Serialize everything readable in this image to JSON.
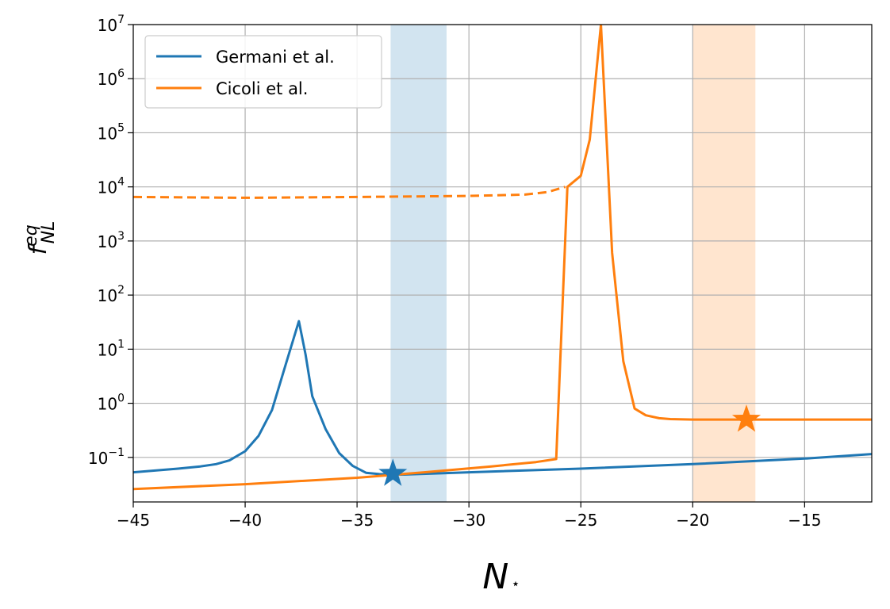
{
  "chart_data": {
    "type": "line",
    "xlabel": "N",
    "xlabel_sub": "⋆",
    "ylabel": "f",
    "ylabel_sup": "eq",
    "ylabel_sub": "NL",
    "xlim": [
      -45,
      -12
    ],
    "ylim": [
      0.015,
      10000000
    ],
    "yscale": "log",
    "grid": true,
    "legend_position": "top-left",
    "x_ticks": [
      {
        "value": -45,
        "label": "−45"
      },
      {
        "value": -40,
        "label": "−40"
      },
      {
        "value": -35,
        "label": "−35"
      },
      {
        "value": -30,
        "label": "−30"
      },
      {
        "value": -25,
        "label": "−25"
      },
      {
        "value": -20,
        "label": "−20"
      },
      {
        "value": -15,
        "label": "−15"
      }
    ],
    "y_ticks": [
      {
        "value": 0.1,
        "base": "10",
        "exp": "−1"
      },
      {
        "value": 1,
        "base": "10",
        "exp": "0"
      },
      {
        "value": 10,
        "base": "10",
        "exp": "1"
      },
      {
        "value": 100,
        "base": "10",
        "exp": "2"
      },
      {
        "value": 1000,
        "base": "10",
        "exp": "3"
      },
      {
        "value": 10000,
        "base": "10",
        "exp": "4"
      },
      {
        "value": 100000,
        "base": "10",
        "exp": "5"
      },
      {
        "value": 1000000,
        "base": "10",
        "exp": "6"
      },
      {
        "value": 10000000,
        "base": "10",
        "exp": "7"
      }
    ],
    "bands": [
      {
        "x0": -33.5,
        "x1": -31.0,
        "color": "#1f77b4",
        "opacity": 0.2
      },
      {
        "x0": -20.0,
        "x1": -17.2,
        "color": "#ff7f0e",
        "opacity": 0.2
      }
    ],
    "series": [
      {
        "name": "Germani et al.",
        "color": "#1f77b4",
        "style": "solid",
        "points": [
          [
            -45,
            0.053
          ],
          [
            -43,
            0.062
          ],
          [
            -42,
            0.068
          ],
          [
            -41.3,
            0.075
          ],
          [
            -40.7,
            0.088
          ],
          [
            -40,
            0.13
          ],
          [
            -39.4,
            0.25
          ],
          [
            -38.8,
            0.75
          ],
          [
            -38.2,
            5
          ],
          [
            -37.6,
            33
          ],
          [
            -37.3,
            8
          ],
          [
            -37,
            1.35
          ],
          [
            -36.4,
            0.33
          ],
          [
            -35.8,
            0.12
          ],
          [
            -35.2,
            0.07
          ],
          [
            -34.6,
            0.052
          ],
          [
            -34,
            0.049
          ],
          [
            -33,
            0.048
          ],
          [
            -30,
            0.053
          ],
          [
            -25,
            0.062
          ],
          [
            -20,
            0.075
          ],
          [
            -15,
            0.095
          ],
          [
            -12,
            0.115
          ]
        ]
      },
      {
        "name": "Cicoli et al.",
        "color": "#ff7f0e",
        "style": "solid",
        "points": [
          [
            -45,
            0.026
          ],
          [
            -40,
            0.032
          ],
          [
            -35,
            0.042
          ],
          [
            -32,
            0.053
          ],
          [
            -29,
            0.068
          ],
          [
            -27,
            0.082
          ],
          [
            -26.1,
            0.093
          ],
          [
            -25.6,
            10000
          ],
          [
            -25,
            16000
          ],
          [
            -24.6,
            75000
          ],
          [
            -24.1,
            10000000
          ],
          [
            -23.6,
            600
          ],
          [
            -23.1,
            6
          ],
          [
            -22.6,
            0.8
          ],
          [
            -22.1,
            0.6
          ],
          [
            -21.5,
            0.53
          ],
          [
            -21,
            0.51
          ],
          [
            -20,
            0.5
          ],
          [
            -15,
            0.5
          ],
          [
            -12,
            0.5
          ]
        ]
      },
      {
        "name": "",
        "color": "#ff7f0e",
        "style": "dashed",
        "points": [
          [
            -45,
            6500
          ],
          [
            -40,
            6300
          ],
          [
            -35,
            6500
          ],
          [
            -30,
            6800
          ],
          [
            -27.5,
            7200
          ],
          [
            -26.5,
            8000
          ],
          [
            -25.7,
            10000
          ]
        ]
      }
    ],
    "markers": [
      {
        "x": -33.4,
        "y": 0.05,
        "color": "#1f77b4",
        "shape": "star"
      },
      {
        "x": -17.6,
        "y": 0.5,
        "color": "#ff7f0e",
        "shape": "star"
      }
    ]
  }
}
